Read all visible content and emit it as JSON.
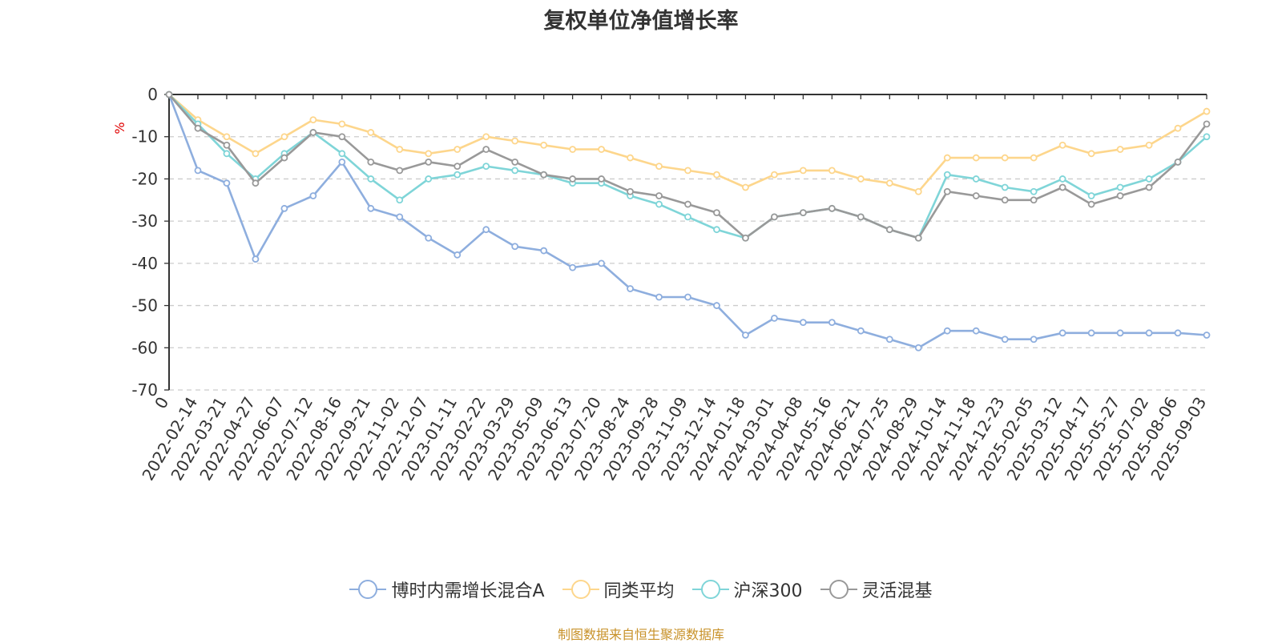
{
  "title": "复权单位净值增长率",
  "source_note": "制图数据来自恒生聚源数据库",
  "chart_data": {
    "type": "line",
    "title": "复权单位净值增长率",
    "ylabel": "%",
    "ylim": [
      -70,
      0
    ],
    "yticks": [
      0,
      -10,
      -20,
      -30,
      -40,
      -50,
      -60,
      -70
    ],
    "grid": true,
    "legend_position": "bottom",
    "x_tick_labels": [
      "0",
      "2022-02-14",
      "2022-03-21",
      "2022-04-27",
      "2022-06-07",
      "2022-07-12",
      "2022-08-16",
      "2022-09-21",
      "2022-11-02",
      "2022-12-07",
      "2023-01-11",
      "2023-02-22",
      "2023-03-29",
      "2023-05-09",
      "2023-06-13",
      "2023-07-20",
      "2023-08-24",
      "2023-09-28",
      "2023-11-09",
      "2023-12-14",
      "2024-01-18",
      "2024-03-01",
      "2024-04-08",
      "2024-05-16",
      "2024-06-21",
      "2024-07-25",
      "2024-08-29",
      "2024-10-14",
      "2024-11-18",
      "2024-12-23",
      "2025-02-05",
      "2025-03-12",
      "2025-04-17",
      "2025-05-27",
      "2025-07-02",
      "2025-08-06",
      "2025-09-03"
    ],
    "x": [
      "0",
      "2022-02-14",
      "2022-03-21",
      "2022-04-27",
      "2022-06-07",
      "2022-07-12",
      "2022-08-16",
      "2022-09-21",
      "2022-11-02",
      "2022-12-07",
      "2023-01-11",
      "2023-02-22",
      "2023-03-29",
      "2023-05-09",
      "2023-06-13",
      "2023-07-20",
      "2023-08-24",
      "2023-09-28",
      "2023-11-09",
      "2023-12-14",
      "2024-01-18",
      "2024-03-01",
      "2024-04-08",
      "2024-05-16",
      "2024-06-21",
      "2024-07-25",
      "2024-08-29",
      "2024-10-14",
      "2024-11-18",
      "2024-12-23",
      "2025-02-05",
      "2025-03-12",
      "2025-04-17",
      "2025-05-27",
      "2025-07-02",
      "2025-08-06",
      "2025-09-03"
    ],
    "series": [
      {
        "name": "博时内需增长混合A",
        "color": "#8eaede",
        "values": [
          0,
          -18,
          -21,
          -39,
          -27,
          -24,
          -16,
          -27,
          -29,
          -34,
          -38,
          -32,
          -36,
          -37,
          -41,
          -40,
          -46,
          -48,
          -48,
          -50,
          -57,
          -53,
          -54,
          -54,
          -56,
          -58,
          -60,
          -56,
          -56,
          -58,
          -58,
          -56.5,
          -56.5,
          -56.5,
          -56.5,
          -56.5,
          -57
        ]
      },
      {
        "name": "同类平均",
        "color": "#fdd68c",
        "values": [
          0,
          -6,
          -10,
          -14,
          -10,
          -6,
          -7,
          -9,
          -13,
          -14,
          -13,
          -10,
          -11,
          -12,
          -13,
          -13,
          -15,
          -17,
          -18,
          -19,
          -22,
          -19,
          -18,
          -18,
          -20,
          -21,
          -23,
          -15,
          -15,
          -15,
          -15,
          -12,
          -14,
          -13,
          -12,
          -8,
          -4
        ]
      },
      {
        "name": "沪深300",
        "color": "#7fd5d8",
        "values": [
          0,
          -7,
          -14,
          -20,
          -14,
          -9,
          -14,
          -20,
          -25,
          -20,
          -19,
          -17,
          -18,
          -19,
          -21,
          -21,
          -24,
          -26,
          -29,
          -32,
          -34,
          -29,
          -28,
          -27,
          -29,
          -32,
          -34,
          -19,
          -20,
          -22,
          -23,
          -20,
          -24,
          -22,
          -20,
          -16,
          -10
        ]
      },
      {
        "name": "灵活混基",
        "color": "#999999",
        "values": [
          0,
          -8,
          -12,
          -21,
          -15,
          -9,
          -10,
          -16,
          -18,
          -16,
          -17,
          -13,
          -16,
          -19,
          -20,
          -20,
          -23,
          -24,
          -26,
          -28,
          -34,
          -29,
          -28,
          -27,
          -29,
          -32,
          -34,
          -23,
          -24,
          -25,
          -25,
          -22,
          -26,
          -24,
          -22,
          -16,
          -7
        ]
      }
    ]
  }
}
